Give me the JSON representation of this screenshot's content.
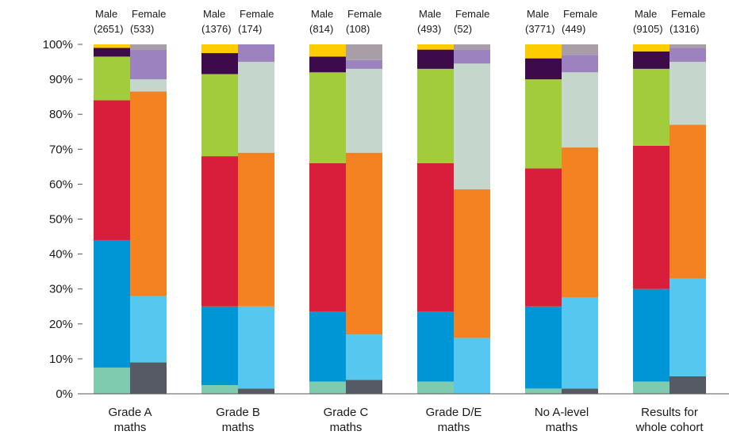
{
  "chart_data": {
    "type": "bar",
    "stacked": true,
    "grouped": true,
    "y_tick_labels": [
      "0%",
      "10%",
      "20%",
      "30%",
      "40%",
      "50%",
      "60%",
      "70%",
      "80%",
      "90%",
      "100%"
    ],
    "ylim": [
      0,
      100
    ],
    "grid": false,
    "groups": [
      {
        "label_lines": [
          "Grade A",
          "maths"
        ],
        "bars": [
          {
            "gender": "Male",
            "n": "(2651)",
            "values": [
              7.5,
              36.5,
              40.0,
              12.5,
              2.5,
              1.0
            ]
          },
          {
            "gender": "Female",
            "n": "(533)",
            "values": [
              9.0,
              19.0,
              58.5,
              3.5,
              8.5,
              1.5
            ]
          }
        ]
      },
      {
        "label_lines": [
          "Grade B",
          "maths"
        ],
        "bars": [
          {
            "gender": "Male",
            "n": "(1376)",
            "values": [
              2.5,
              22.5,
              43.0,
              23.5,
              6.0,
              2.5
            ]
          },
          {
            "gender": "Female",
            "n": "(174)",
            "values": [
              1.5,
              23.5,
              44.0,
              26.0,
              5.0,
              0.0
            ]
          }
        ]
      },
      {
        "label_lines": [
          "Grade C",
          "maths"
        ],
        "bars": [
          {
            "gender": "Male",
            "n": "(814)",
            "values": [
              3.5,
              20.0,
              42.5,
              26.0,
              4.5,
              3.5
            ]
          },
          {
            "gender": "Female",
            "n": "(108)",
            "values": [
              4.0,
              13.0,
              52.0,
              24.0,
              2.5,
              4.5
            ]
          }
        ]
      },
      {
        "label_lines": [
          "Grade D/E",
          "maths"
        ],
        "bars": [
          {
            "gender": "Male",
            "n": "(493)",
            "values": [
              3.5,
              20.0,
              42.5,
              27.0,
              5.5,
              1.5
            ]
          },
          {
            "gender": "Female",
            "n": "(52)",
            "values": [
              16.0,
              42.5,
              36.0,
              4.0,
              1.5
            ]
          }
        ]
      },
      {
        "label_lines": [
          "No A-level",
          "maths"
        ],
        "bars": [
          {
            "gender": "Male",
            "n": "(3771)",
            "values": [
              1.5,
              23.5,
              39.5,
              25.5,
              6.0,
              4.0
            ]
          },
          {
            "gender": "Female",
            "n": "(449)",
            "values": [
              1.5,
              26.0,
              43.0,
              21.5,
              5.0,
              3.0
            ]
          }
        ]
      },
      {
        "label_lines": [
          "Results for",
          "whole cohort"
        ],
        "bars": [
          {
            "gender": "Male",
            "n": "(9105)",
            "values": [
              3.5,
              26.5,
              41.0,
              22.0,
              5.0,
              2.0
            ]
          },
          {
            "gender": "Female",
            "n": "(1316)",
            "values": [
              5.0,
              28.0,
              44.0,
              18.0,
              4.0,
              1.0
            ]
          }
        ]
      }
    ],
    "colors": {
      "male": [
        "#7fcbb0",
        "#0096d6",
        "#d81e3a",
        "#a3cc3c",
        "#3d0a4c",
        "#ffcc00"
      ],
      "female": [
        "#555a64",
        "#56c8f0",
        "#f58220",
        "#c5d6cc",
        "#9c82be",
        "#a89ea8"
      ],
      "female_grade_de": [
        "#56c8f0",
        "#f58220",
        "#c5d6cc",
        "#9c82be",
        "#a89ea8"
      ]
    }
  }
}
